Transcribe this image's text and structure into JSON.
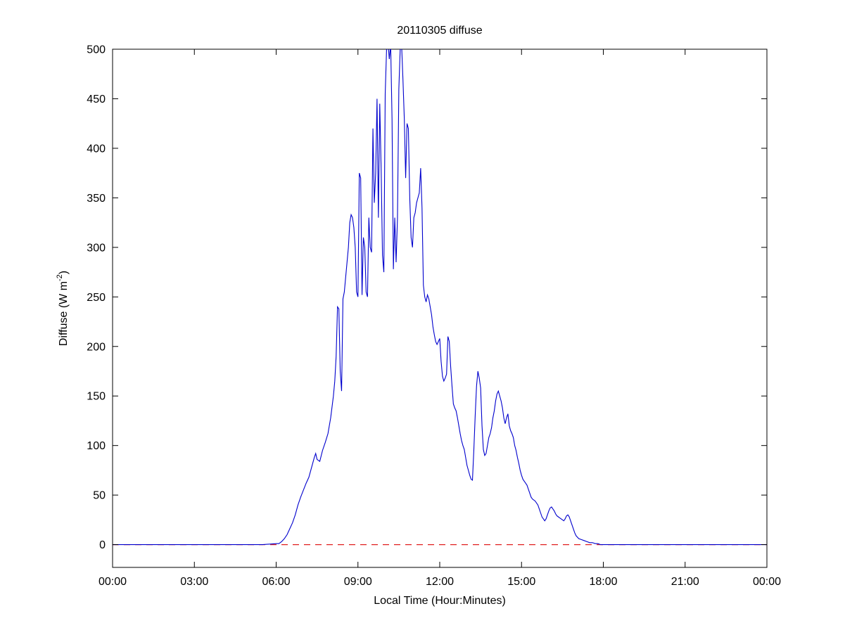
{
  "chart_data": {
    "type": "line",
    "title": "20110305 diffuse",
    "xlabel": "Local Time (Hour:Minutes)",
    "ylabel_main": "Diffuse (W m",
    "ylabel_sup": "-2",
    "ylabel_close": ")",
    "xlim": [
      0,
      24
    ],
    "ylim": [
      -23,
      500
    ],
    "x_ticks": [
      0,
      3,
      6,
      9,
      12,
      15,
      18,
      21,
      24
    ],
    "x_tick_labels": [
      "00:00",
      "03:00",
      "06:00",
      "09:00",
      "12:00",
      "15:00",
      "18:00",
      "21:00",
      "00:00"
    ],
    "y_ticks": [
      0,
      50,
      100,
      150,
      200,
      250,
      300,
      350,
      400,
      450,
      500
    ],
    "y_tick_labels": [
      "0",
      "50",
      "100",
      "150",
      "200",
      "250",
      "300",
      "350",
      "400",
      "450",
      "500"
    ],
    "grid": false,
    "legend": "none",
    "zero_line": {
      "y": 0,
      "color": "#e02020",
      "style": "dashed"
    },
    "series": [
      {
        "name": "diffuse",
        "color": "#0000cd",
        "points": [
          [
            0,
            0
          ],
          [
            0.5,
            0
          ],
          [
            1,
            0
          ],
          [
            1.5,
            0
          ],
          [
            2,
            0
          ],
          [
            2.5,
            0
          ],
          [
            3,
            0
          ],
          [
            3.5,
            0
          ],
          [
            4,
            0
          ],
          [
            4.5,
            0
          ],
          [
            5,
            0
          ],
          [
            5.5,
            0
          ],
          [
            6,
            1
          ],
          [
            6.1,
            1
          ],
          [
            6.2,
            3
          ],
          [
            6.3,
            6
          ],
          [
            6.4,
            10
          ],
          [
            6.5,
            16
          ],
          [
            6.6,
            22
          ],
          [
            6.7,
            30
          ],
          [
            6.8,
            40
          ],
          [
            6.9,
            48
          ],
          [
            7.0,
            55
          ],
          [
            7.1,
            62
          ],
          [
            7.2,
            68
          ],
          [
            7.3,
            78
          ],
          [
            7.4,
            88
          ],
          [
            7.45,
            92
          ],
          [
            7.5,
            86
          ],
          [
            7.6,
            84
          ],
          [
            7.7,
            95
          ],
          [
            7.8,
            103
          ],
          [
            7.9,
            112
          ],
          [
            8.0,
            128
          ],
          [
            8.1,
            150
          ],
          [
            8.15,
            165
          ],
          [
            8.2,
            190
          ],
          [
            8.25,
            240
          ],
          [
            8.3,
            238
          ],
          [
            8.35,
            175
          ],
          [
            8.4,
            155
          ],
          [
            8.45,
            248
          ],
          [
            8.5,
            255
          ],
          [
            8.55,
            270
          ],
          [
            8.6,
            285
          ],
          [
            8.65,
            300
          ],
          [
            8.7,
            325
          ],
          [
            8.75,
            333
          ],
          [
            8.8,
            330
          ],
          [
            8.85,
            320
          ],
          [
            8.9,
            300
          ],
          [
            8.95,
            255
          ],
          [
            9.0,
            250
          ],
          [
            9.05,
            375
          ],
          [
            9.1,
            370
          ],
          [
            9.15,
            252
          ],
          [
            9.2,
            310
          ],
          [
            9.25,
            300
          ],
          [
            9.3,
            255
          ],
          [
            9.35,
            250
          ],
          [
            9.4,
            330
          ],
          [
            9.45,
            300
          ],
          [
            9.5,
            295
          ],
          [
            9.55,
            420
          ],
          [
            9.6,
            345
          ],
          [
            9.65,
            375
          ],
          [
            9.7,
            450
          ],
          [
            9.75,
            330
          ],
          [
            9.8,
            445
          ],
          [
            9.85,
            380
          ],
          [
            9.9,
            292
          ],
          [
            9.95,
            275
          ],
          [
            10.0,
            455
          ],
          [
            10.05,
            500
          ],
          [
            10.1,
            508
          ],
          [
            10.15,
            490
          ],
          [
            10.2,
            505
          ],
          [
            10.25,
            430
          ],
          [
            10.3,
            278
          ],
          [
            10.35,
            330
          ],
          [
            10.4,
            285
          ],
          [
            10.45,
            330
          ],
          [
            10.5,
            460
          ],
          [
            10.55,
            500
          ],
          [
            10.6,
            505
          ],
          [
            10.65,
            470
          ],
          [
            10.7,
            430
          ],
          [
            10.75,
            370
          ],
          [
            10.8,
            425
          ],
          [
            10.85,
            420
          ],
          [
            10.9,
            350
          ],
          [
            10.95,
            310
          ],
          [
            11.0,
            300
          ],
          [
            11.05,
            330
          ],
          [
            11.1,
            335
          ],
          [
            11.15,
            345
          ],
          [
            11.2,
            350
          ],
          [
            11.25,
            355
          ],
          [
            11.3,
            380
          ],
          [
            11.35,
            340
          ],
          [
            11.4,
            262
          ],
          [
            11.45,
            250
          ],
          [
            11.5,
            245
          ],
          [
            11.55,
            252
          ],
          [
            11.6,
            248
          ],
          [
            11.65,
            240
          ],
          [
            11.7,
            232
          ],
          [
            11.75,
            220
          ],
          [
            11.8,
            212
          ],
          [
            11.85,
            205
          ],
          [
            11.9,
            202
          ],
          [
            11.95,
            205
          ],
          [
            12.0,
            208
          ],
          [
            12.05,
            185
          ],
          [
            12.1,
            170
          ],
          [
            12.15,
            165
          ],
          [
            12.2,
            168
          ],
          [
            12.25,
            172
          ],
          [
            12.3,
            210
          ],
          [
            12.35,
            205
          ],
          [
            12.4,
            180
          ],
          [
            12.45,
            160
          ],
          [
            12.5,
            142
          ],
          [
            12.55,
            138
          ],
          [
            12.6,
            135
          ],
          [
            12.65,
            128
          ],
          [
            12.7,
            120
          ],
          [
            12.75,
            112
          ],
          [
            12.8,
            105
          ],
          [
            12.85,
            100
          ],
          [
            12.9,
            96
          ],
          [
            12.95,
            88
          ],
          [
            13.0,
            80
          ],
          [
            13.05,
            75
          ],
          [
            13.1,
            70
          ],
          [
            13.15,
            66
          ],
          [
            13.2,
            65
          ],
          [
            13.25,
            95
          ],
          [
            13.3,
            130
          ],
          [
            13.35,
            160
          ],
          [
            13.4,
            175
          ],
          [
            13.45,
            168
          ],
          [
            13.5,
            158
          ],
          [
            13.55,
            120
          ],
          [
            13.6,
            96
          ],
          [
            13.65,
            90
          ],
          [
            13.7,
            92
          ],
          [
            13.75,
            100
          ],
          [
            13.8,
            108
          ],
          [
            13.85,
            112
          ],
          [
            13.9,
            118
          ],
          [
            13.95,
            128
          ],
          [
            14.0,
            135
          ],
          [
            14.05,
            145
          ],
          [
            14.1,
            152
          ],
          [
            14.15,
            155
          ],
          [
            14.2,
            150
          ],
          [
            14.25,
            145
          ],
          [
            14.3,
            138
          ],
          [
            14.35,
            128
          ],
          [
            14.4,
            122
          ],
          [
            14.45,
            128
          ],
          [
            14.5,
            132
          ],
          [
            14.55,
            120
          ],
          [
            14.6,
            115
          ],
          [
            14.65,
            112
          ],
          [
            14.7,
            108
          ],
          [
            14.75,
            100
          ],
          [
            14.8,
            95
          ],
          [
            14.85,
            88
          ],
          [
            14.9,
            82
          ],
          [
            14.95,
            75
          ],
          [
            15.0,
            70
          ],
          [
            15.05,
            66
          ],
          [
            15.1,
            64
          ],
          [
            15.15,
            62
          ],
          [
            15.2,
            60
          ],
          [
            15.25,
            56
          ],
          [
            15.3,
            52
          ],
          [
            15.35,
            48
          ],
          [
            15.4,
            46
          ],
          [
            15.45,
            45
          ],
          [
            15.5,
            44
          ],
          [
            15.55,
            42
          ],
          [
            15.6,
            40
          ],
          [
            15.65,
            36
          ],
          [
            15.7,
            32
          ],
          [
            15.75,
            28
          ],
          [
            15.8,
            26
          ],
          [
            15.85,
            24
          ],
          [
            15.9,
            26
          ],
          [
            15.95,
            30
          ],
          [
            16.0,
            34
          ],
          [
            16.05,
            37
          ],
          [
            16.1,
            38
          ],
          [
            16.15,
            36
          ],
          [
            16.2,
            34
          ],
          [
            16.25,
            31
          ],
          [
            16.3,
            29
          ],
          [
            16.35,
            28
          ],
          [
            16.4,
            27
          ],
          [
            16.45,
            26
          ],
          [
            16.5,
            25
          ],
          [
            16.55,
            24
          ],
          [
            16.6,
            26
          ],
          [
            16.65,
            29
          ],
          [
            16.7,
            30
          ],
          [
            16.75,
            28
          ],
          [
            16.8,
            24
          ],
          [
            16.85,
            20
          ],
          [
            16.9,
            16
          ],
          [
            16.95,
            12
          ],
          [
            17.0,
            9
          ],
          [
            17.1,
            6
          ],
          [
            17.2,
            5
          ],
          [
            17.3,
            4
          ],
          [
            17.4,
            3
          ],
          [
            17.5,
            2
          ],
          [
            17.6,
            2
          ],
          [
            17.7,
            1
          ],
          [
            17.8,
            1
          ],
          [
            17.9,
            0
          ],
          [
            18.0,
            0
          ],
          [
            18.5,
            0
          ],
          [
            19,
            0
          ],
          [
            19.5,
            0
          ],
          [
            20,
            0
          ],
          [
            20.5,
            0
          ],
          [
            21,
            0
          ],
          [
            21.5,
            0
          ],
          [
            22,
            0
          ],
          [
            22.5,
            0
          ],
          [
            23,
            0
          ],
          [
            23.5,
            0
          ],
          [
            24,
            0
          ]
        ]
      }
    ]
  }
}
